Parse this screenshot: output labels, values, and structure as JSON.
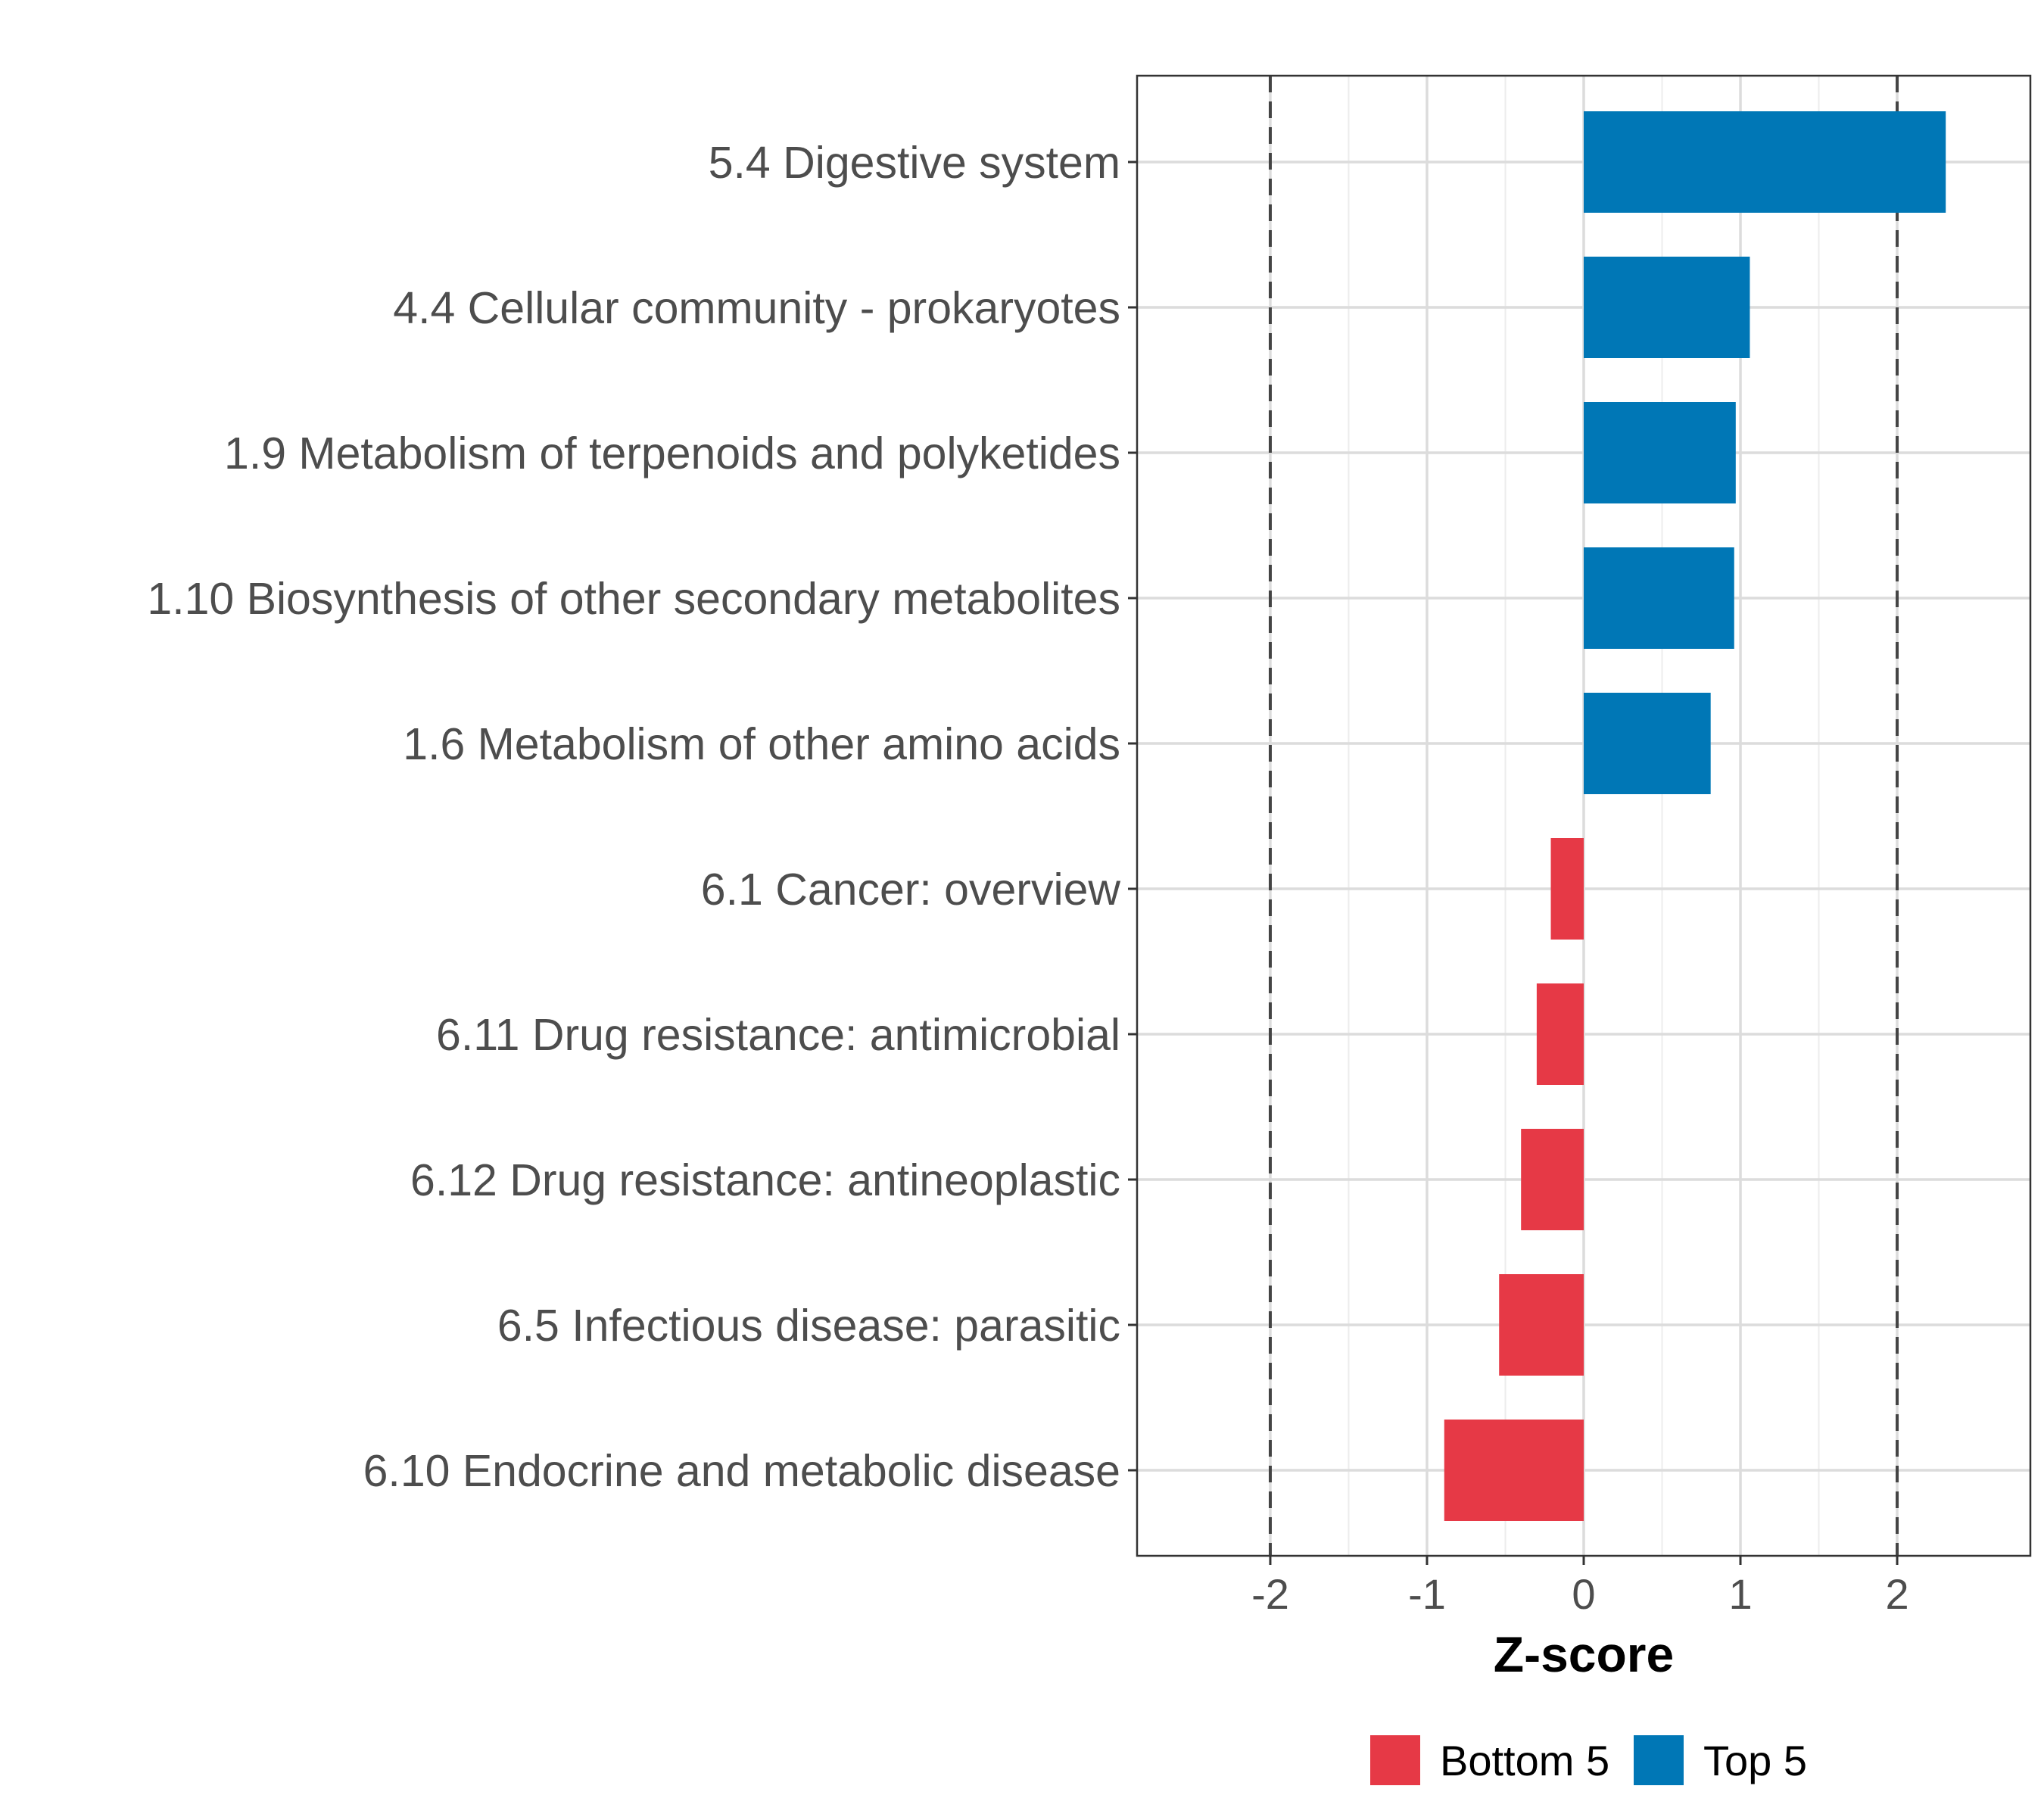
{
  "chart_data": {
    "type": "bar",
    "orientation": "horizontal",
    "categories": [
      "5.4 Digestive system",
      "4.4 Cellular community - prokaryotes",
      "1.9 Metabolism of terpenoids and polyketides",
      "1.10 Biosynthesis of other secondary metabolites",
      "1.6 Metabolism of other amino acids",
      "6.1 Cancer: overview",
      "6.11 Drug resistance: antimicrobial",
      "6.12 Drug resistance: antineoplastic",
      "6.5 Infectious disease: parasitic",
      "6.10 Endocrine and metabolic disease"
    ],
    "values": [
      2.31,
      1.06,
      0.97,
      0.96,
      0.81,
      -0.21,
      -0.3,
      -0.4,
      -0.54,
      -0.89
    ],
    "groups": [
      "Top 5",
      "Top 5",
      "Top 5",
      "Top 5",
      "Top 5",
      "Bottom 5",
      "Bottom 5",
      "Bottom 5",
      "Bottom 5",
      "Bottom 5"
    ],
    "xlabel": "Z-score",
    "ylabel": "",
    "xlim": [
      -2.85,
      2.85
    ],
    "xticks": [
      -2,
      -1,
      0,
      1,
      2
    ],
    "xtick_labels": [
      "-2",
      "-1",
      "0",
      "1",
      "2"
    ],
    "reference_lines": [
      -2,
      2
    ],
    "grid": true,
    "legend": {
      "position": "bottom",
      "entries": [
        {
          "label": "Bottom 5",
          "color": "#e63946"
        },
        {
          "label": "Top 5",
          "color": "#0077b6"
        }
      ]
    },
    "colors": {
      "Bottom 5": "#e63946",
      "Top 5": "#0077b6"
    }
  }
}
